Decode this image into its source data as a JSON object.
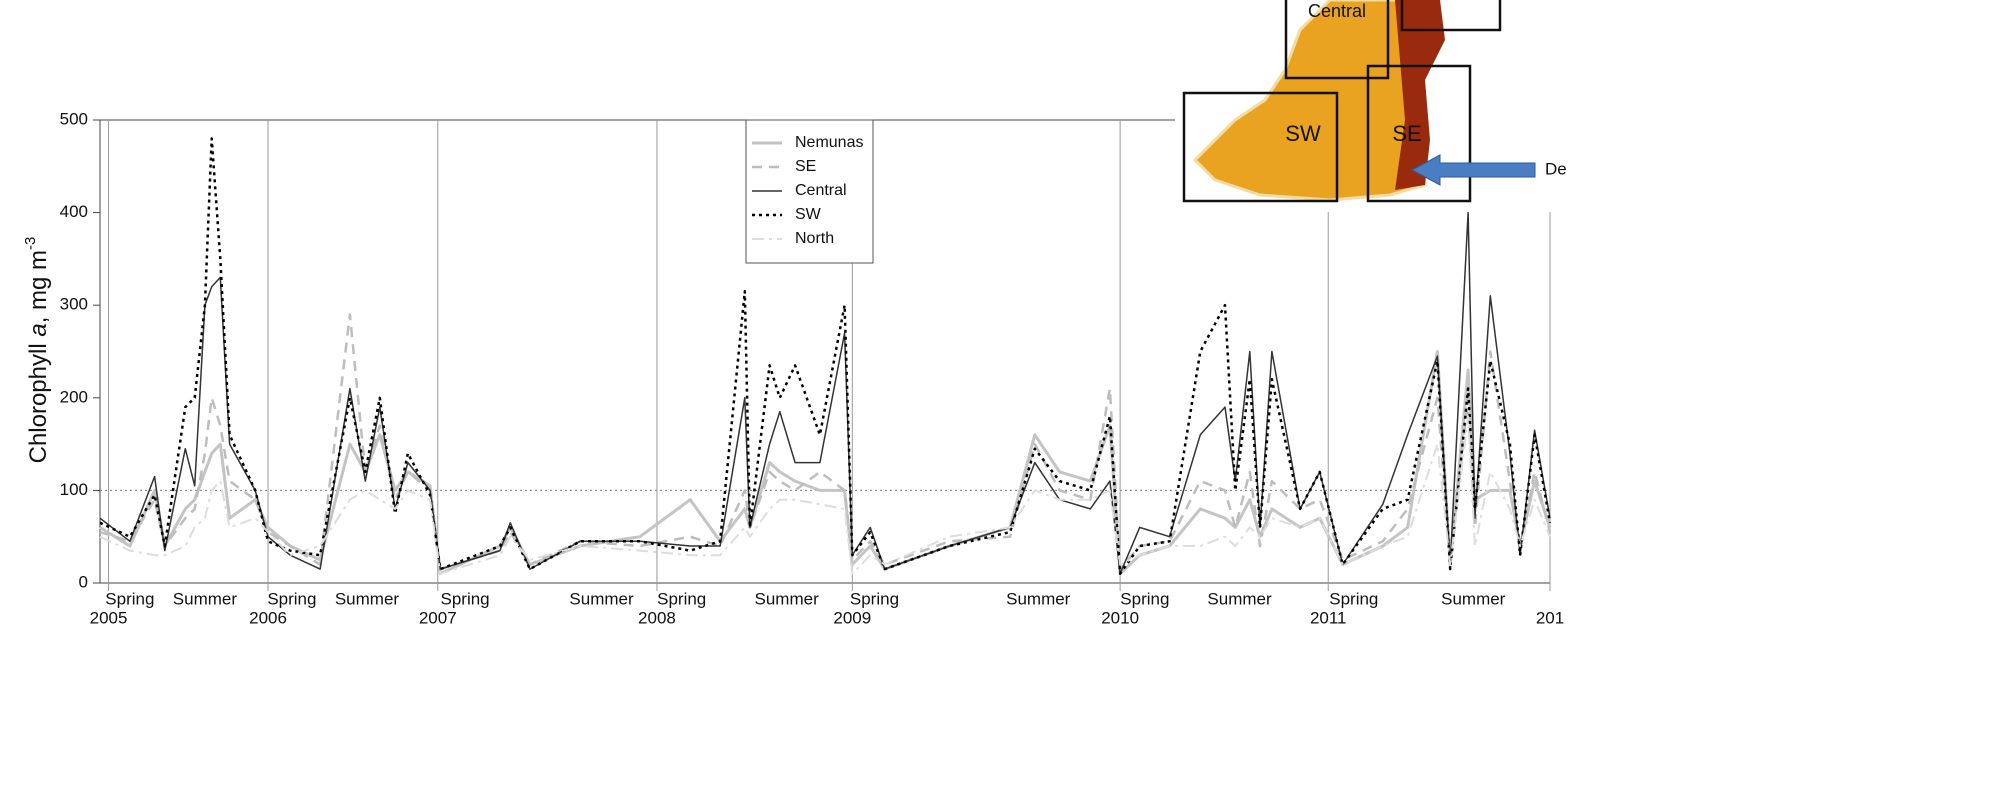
{
  "chart_data": {
    "type": "line",
    "ylabel": [
      "Chlorophyll ",
      "a",
      ", mg m",
      "-3"
    ],
    "x": [
      0,
      3.5,
      6.4,
      7.6,
      10,
      11.1,
      12.3,
      13.1,
      14.1,
      15.2,
      18.2,
      19.7,
      22.3,
      25.8,
      29.3,
      31.1,
      32.8,
      34.6,
      36.1,
      38.7,
      39.9,
      46.9,
      48.1,
      50.4,
      56.3,
      63.3,
      69.2,
      72.7,
      75.6,
      76.2,
      78.5,
      79.7,
      81.5,
      84.4,
      87.3,
      88.2,
      90.3,
      92,
      99.6,
      106.7,
      109.6,
      112.5,
      116.1,
      118.4,
      119.6,
      121.9,
      125.4,
      129,
      131.9,
      133.1,
      134.8,
      136,
      137.4,
      140.7,
      143,
      145.7,
      150.4,
      153.3,
      156.8,
      158.3,
      160.4,
      161.2,
      163,
      165.3,
      166.5,
      168.2,
      170
    ],
    "series": [
      {
        "name": "Nemunas",
        "color": "#c4c4c4",
        "dash": "none",
        "width": 3,
        "values": [
          60,
          40,
          100,
          40,
          80,
          90,
          120,
          140,
          150,
          70,
          90,
          60,
          40,
          25,
          150,
          120,
          160,
          100,
          120,
          105,
          10,
          40,
          60,
          20,
          40,
          50,
          90,
          45,
          80,
          60,
          130,
          120,
          110,
          100,
          100,
          20,
          40,
          15,
          40,
          60,
          160,
          120,
          110,
          170,
          10,
          30,
          40,
          80,
          70,
          60,
          90,
          50,
          80,
          60,
          70,
          20,
          40,
          60,
          250,
          20,
          230,
          90,
          100,
          100,
          40,
          110,
          60
        ]
      },
      {
        "name": "SE",
        "color": "#bdbdbd",
        "dash": "10 7",
        "width": 2.5,
        "values": [
          55,
          45,
          90,
          40,
          70,
          80,
          140,
          200,
          170,
          110,
          90,
          55,
          40,
          20,
          290,
          120,
          170,
          90,
          120,
          100,
          15,
          35,
          55,
          20,
          45,
          40,
          50,
          40,
          100,
          60,
          120,
          110,
          100,
          120,
          100,
          25,
          45,
          20,
          45,
          50,
          150,
          100,
          90,
          210,
          15,
          40,
          45,
          110,
          100,
          60,
          120,
          40,
          110,
          80,
          90,
          25,
          45,
          80,
          200,
          20,
          200,
          60,
          250,
          110,
          35,
          120,
          55
        ]
      },
      {
        "name": "Central",
        "color": "#333333",
        "dash": "none",
        "width": 1.5,
        "values": [
          70,
          45,
          115,
          35,
          145,
          105,
          300,
          320,
          330,
          150,
          100,
          50,
          30,
          15,
          210,
          110,
          190,
          80,
          130,
          100,
          15,
          35,
          65,
          15,
          45,
          45,
          40,
          40,
          200,
          60,
          150,
          185,
          130,
          130,
          270,
          30,
          60,
          15,
          40,
          60,
          130,
          90,
          80,
          110,
          10,
          60,
          50,
          160,
          190,
          110,
          250,
          60,
          250,
          80,
          120,
          20,
          85,
          160,
          245,
          20,
          400,
          70,
          310,
          140,
          30,
          165,
          70
        ]
      },
      {
        "name": "SW",
        "color": "#000000",
        "dash": "3 4",
        "width": 2.5,
        "values": [
          65,
          50,
          95,
          40,
          190,
          200,
          300,
          480,
          350,
          160,
          100,
          45,
          35,
          30,
          200,
          120,
          200,
          75,
          140,
          95,
          15,
          40,
          60,
          15,
          45,
          45,
          35,
          45,
          315,
          60,
          235,
          200,
          235,
          160,
          300,
          30,
          55,
          15,
          40,
          55,
          145,
          110,
          100,
          180,
          10,
          40,
          45,
          250,
          300,
          100,
          220,
          60,
          220,
          80,
          120,
          20,
          80,
          90,
          240,
          15,
          210,
          80,
          240,
          150,
          30,
          160,
          65
        ]
      },
      {
        "name": "North",
        "color": "#dddddd",
        "dash": "12 5 3 5",
        "width": 2,
        "values": [
          50,
          35,
          30,
          30,
          40,
          60,
          70,
          100,
          110,
          60,
          70,
          55,
          30,
          40,
          90,
          100,
          90,
          80,
          100,
          90,
          10,
          30,
          50,
          25,
          40,
          35,
          30,
          30,
          60,
          50,
          80,
          90,
          90,
          85,
          80,
          10,
          30,
          20,
          50,
          60,
          100,
          90,
          90,
          100,
          20,
          30,
          40,
          40,
          50,
          40,
          60,
          50,
          70,
          60,
          70,
          20,
          40,
          50,
          150,
          20,
          180,
          40,
          120,
          80,
          40,
          90,
          50
        ]
      }
    ],
    "xlim": [
      0,
      170
    ],
    "xticks": [
      {
        "value": 1,
        "label": "2005"
      },
      {
        "value": 19.7,
        "label": "2006"
      },
      {
        "value": 39.6,
        "label": "2007"
      },
      {
        "value": 65.3,
        "label": "2008"
      },
      {
        "value": 88.2,
        "label": "2009"
      },
      {
        "value": 119.6,
        "label": "2010"
      },
      {
        "value": 144,
        "label": "2011"
      },
      {
        "value": 170,
        "label": "201"
      }
    ],
    "season_labels": [
      {
        "x": 3.5,
        "label": "Spring"
      },
      {
        "x": 12.3,
        "label": "Summer"
      },
      {
        "x": 22.5,
        "label": "Spring"
      },
      {
        "x": 31.3,
        "label": "Summer"
      },
      {
        "x": 42.8,
        "label": "Spring"
      },
      {
        "x": 58.8,
        "label": "Summer"
      },
      {
        "x": 68.2,
        "label": "Spring"
      },
      {
        "x": 80.5,
        "label": "Summer"
      },
      {
        "x": 90.8,
        "label": "Spring"
      },
      {
        "x": 110,
        "label": "Summer"
      },
      {
        "x": 122.5,
        "label": "Spring"
      },
      {
        "x": 133.6,
        "label": "Summer"
      },
      {
        "x": 147,
        "label": "Spring"
      },
      {
        "x": 161,
        "label": "Summer"
      }
    ],
    "ylim": [
      0,
      500
    ],
    "yticks": [
      0,
      100,
      200,
      300,
      400,
      500
    ],
    "hline": 100
  },
  "inset": {
    "labels": [
      "Central",
      "SW",
      "SE",
      "De"
    ]
  }
}
